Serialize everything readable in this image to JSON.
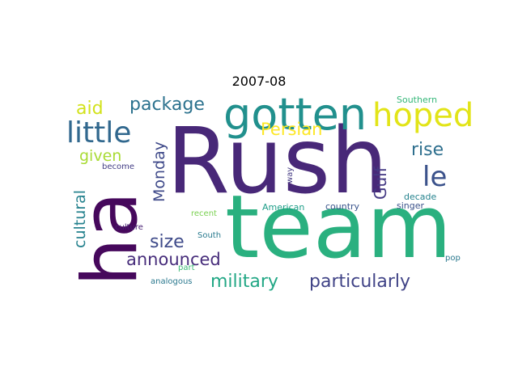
{
  "figure": {
    "title": "2007-08",
    "words": [
      {
        "text": "Rush",
        "color": "#482878",
        "vertical": false
      },
      {
        "text": "team",
        "color": "#2ab07f",
        "vertical": false
      },
      {
        "text": "ha",
        "color": "#46085c",
        "vertical": true
      },
      {
        "text": "gotten",
        "color": "#21908d",
        "vertical": false
      },
      {
        "text": "hoped",
        "color": "#e2e418",
        "vertical": false
      },
      {
        "text": "little",
        "color": "#31688e",
        "vertical": false
      },
      {
        "text": "le",
        "color": "#3b528b",
        "vertical": false
      },
      {
        "text": "package",
        "color": "#2c728e",
        "vertical": false
      },
      {
        "text": "aid",
        "color": "#d2e21b",
        "vertical": false
      },
      {
        "text": "Persian",
        "color": "#fde725",
        "vertical": false
      },
      {
        "text": "rise",
        "color": "#2e6f8e",
        "vertical": false
      },
      {
        "text": "given",
        "color": "#a8db34",
        "vertical": false
      },
      {
        "text": "Gulf",
        "color": "#443983",
        "vertical": true
      },
      {
        "text": "Monday",
        "color": "#3e4989",
        "vertical": true
      },
      {
        "text": "cultural",
        "color": "#26828e",
        "vertical": true
      },
      {
        "text": "size",
        "color": "#3e4a89",
        "vertical": false
      },
      {
        "text": "announced",
        "color": "#472d7b",
        "vertical": false
      },
      {
        "text": "military",
        "color": "#22a785",
        "vertical": false
      },
      {
        "text": "particularly",
        "color": "#414487",
        "vertical": false
      },
      {
        "text": "Southern",
        "color": "#35b779",
        "vertical": false
      },
      {
        "text": "become",
        "color": "#433e85",
        "vertical": false
      },
      {
        "text": "way",
        "color": "#443a83",
        "vertical": true
      },
      {
        "text": "decade",
        "color": "#25838e",
        "vertical": false
      },
      {
        "text": "American",
        "color": "#1f9e89",
        "vertical": false
      },
      {
        "text": "country",
        "color": "#3a548c",
        "vertical": false
      },
      {
        "text": "singer",
        "color": "#3b528b",
        "vertical": false
      },
      {
        "text": "recent",
        "color": "#7ad151",
        "vertical": false
      },
      {
        "text": "culture",
        "color": "#482173",
        "vertical": false
      },
      {
        "text": "South",
        "color": "#297a8e",
        "vertical": false
      },
      {
        "text": "part",
        "color": "#3bbb75",
        "vertical": false
      },
      {
        "text": "pop",
        "color": "#2a788e",
        "vertical": false
      },
      {
        "text": "analogous",
        "color": "#2a788e",
        "vertical": false
      }
    ]
  }
}
